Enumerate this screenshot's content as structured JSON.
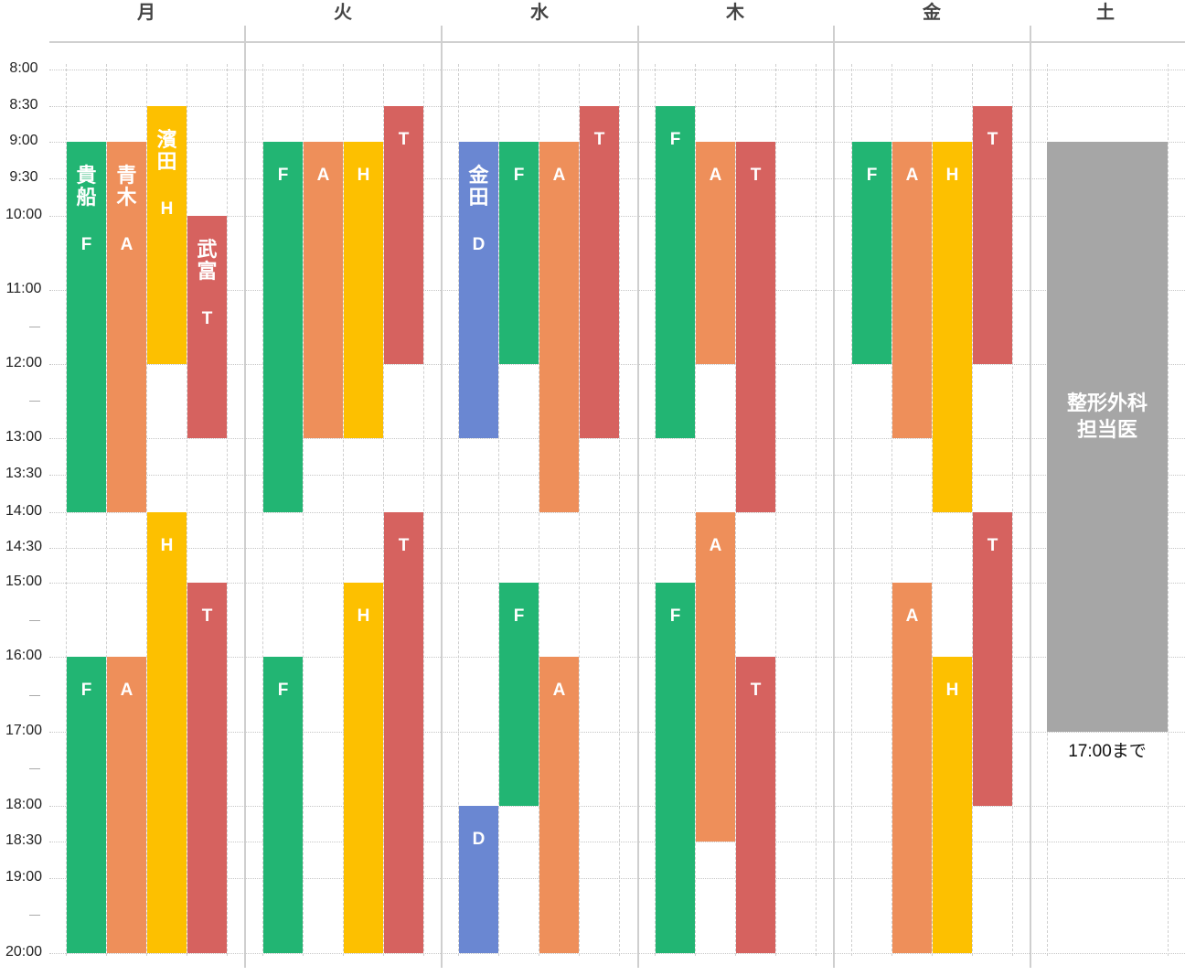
{
  "days": [
    "月",
    "火",
    "水",
    "木",
    "金",
    "土"
  ],
  "time_labels": [
    {
      "t": 8.0,
      "label": "8:00"
    },
    {
      "t": 8.5,
      "label": "8:30"
    },
    {
      "t": 9.0,
      "label": "9:00"
    },
    {
      "t": 9.5,
      "label": "9:30"
    },
    {
      "t": 10.0,
      "label": "10:00"
    },
    {
      "t": 11.0,
      "label": "11:00"
    },
    {
      "t": 11.5,
      "label": "—"
    },
    {
      "t": 12.0,
      "label": "12:00"
    },
    {
      "t": 12.5,
      "label": "—"
    },
    {
      "t": 13.0,
      "label": "13:00"
    },
    {
      "t": 13.5,
      "label": "13:30"
    },
    {
      "t": 14.0,
      "label": "14:00"
    },
    {
      "t": 14.5,
      "label": "14:30"
    },
    {
      "t": 15.0,
      "label": "15:00"
    },
    {
      "t": 15.5,
      "label": "—"
    },
    {
      "t": 16.0,
      "label": "16:00"
    },
    {
      "t": 16.5,
      "label": "—"
    },
    {
      "t": 17.0,
      "label": "17:00"
    },
    {
      "t": 17.5,
      "label": "—"
    },
    {
      "t": 18.0,
      "label": "18:00"
    },
    {
      "t": 18.5,
      "label": "18:30"
    },
    {
      "t": 19.0,
      "label": "19:00"
    },
    {
      "t": 19.5,
      "label": "—"
    },
    {
      "t": 20.0,
      "label": "20:00"
    }
  ],
  "colors": {
    "F": "#22b573",
    "A": "#ee8f5a",
    "H": "#fdc000",
    "T": "#d6625f",
    "D": "#6a87d2",
    "saturday": "#a6a6a6"
  },
  "schedule": [
    {
      "day": 0,
      "sub": 0,
      "doctor": "F",
      "start": 9.0,
      "end": 14.0,
      "name": "貴船",
      "letter": "F"
    },
    {
      "day": 0,
      "sub": 1,
      "doctor": "A",
      "start": 9.0,
      "end": 14.0,
      "name": "青木",
      "letter": "A"
    },
    {
      "day": 0,
      "sub": 2,
      "doctor": "H",
      "start": 8.5,
      "end": 12.0,
      "name": "濱田",
      "letter": "H"
    },
    {
      "day": 0,
      "sub": 3,
      "doctor": "T",
      "start": 10.0,
      "end": 13.0,
      "name": "武富",
      "letter": "T"
    },
    {
      "day": 0,
      "sub": 0,
      "doctor": "F",
      "start": 16.0,
      "end": 20.0,
      "letter": "F"
    },
    {
      "day": 0,
      "sub": 1,
      "doctor": "A",
      "start": 16.0,
      "end": 20.0,
      "letter": "A"
    },
    {
      "day": 0,
      "sub": 2,
      "doctor": "H",
      "start": 14.0,
      "end": 20.0,
      "letter": "H"
    },
    {
      "day": 0,
      "sub": 3,
      "doctor": "T",
      "start": 15.0,
      "end": 20.0,
      "letter": "T"
    },
    {
      "day": 1,
      "sub": 0,
      "doctor": "F",
      "start": 9.0,
      "end": 14.0,
      "letter": "F"
    },
    {
      "day": 1,
      "sub": 1,
      "doctor": "A",
      "start": 9.0,
      "end": 13.0,
      "letter": "A"
    },
    {
      "day": 1,
      "sub": 2,
      "doctor": "H",
      "start": 9.0,
      "end": 13.0,
      "letter": "H"
    },
    {
      "day": 1,
      "sub": 3,
      "doctor": "T",
      "start": 8.5,
      "end": 12.0,
      "letter": "T"
    },
    {
      "day": 1,
      "sub": 0,
      "doctor": "F",
      "start": 16.0,
      "end": 20.0,
      "letter": "F"
    },
    {
      "day": 1,
      "sub": 2,
      "doctor": "H",
      "start": 15.0,
      "end": 20.0,
      "letter": "H"
    },
    {
      "day": 1,
      "sub": 3,
      "doctor": "T",
      "start": 14.0,
      "end": 20.0,
      "letter": "T"
    },
    {
      "day": 2,
      "sub": 0,
      "doctor": "D",
      "start": 9.0,
      "end": 13.0,
      "name": "金田",
      "letter": "D"
    },
    {
      "day": 2,
      "sub": 1,
      "doctor": "F",
      "start": 9.0,
      "end": 12.0,
      "letter": "F"
    },
    {
      "day": 2,
      "sub": 2,
      "doctor": "A",
      "start": 9.0,
      "end": 14.0,
      "letter": "A"
    },
    {
      "day": 2,
      "sub": 3,
      "doctor": "T",
      "start": 8.5,
      "end": 13.0,
      "letter": "T"
    },
    {
      "day": 2,
      "sub": 0,
      "doctor": "D",
      "start": 18.0,
      "end": 20.0,
      "letter": "D"
    },
    {
      "day": 2,
      "sub": 1,
      "doctor": "F",
      "start": 15.0,
      "end": 18.0,
      "letter": "F"
    },
    {
      "day": 2,
      "sub": 2,
      "doctor": "A",
      "start": 16.0,
      "end": 20.0,
      "letter": "A"
    },
    {
      "day": 3,
      "sub": 0,
      "doctor": "F",
      "start": 8.5,
      "end": 13.0,
      "letter": "F"
    },
    {
      "day": 3,
      "sub": 1,
      "doctor": "A",
      "start": 9.0,
      "end": 12.0,
      "letter": "A"
    },
    {
      "day": 3,
      "sub": 2,
      "doctor": "T",
      "start": 9.0,
      "end": 14.0,
      "letter": "T"
    },
    {
      "day": 3,
      "sub": 0,
      "doctor": "F",
      "start": 15.0,
      "end": 20.0,
      "letter": "F"
    },
    {
      "day": 3,
      "sub": 1,
      "doctor": "A",
      "start": 14.0,
      "end": 18.5,
      "letter": "A"
    },
    {
      "day": 3,
      "sub": 2,
      "doctor": "T",
      "start": 16.0,
      "end": 20.0,
      "letter": "T"
    },
    {
      "day": 4,
      "sub": 0,
      "doctor": "F",
      "start": 9.0,
      "end": 12.0,
      "letter": "F"
    },
    {
      "day": 4,
      "sub": 1,
      "doctor": "A",
      "start": 9.0,
      "end": 13.0,
      "letter": "A"
    },
    {
      "day": 4,
      "sub": 2,
      "doctor": "H",
      "start": 9.0,
      "end": 14.0,
      "letter": "H"
    },
    {
      "day": 4,
      "sub": 3,
      "doctor": "T",
      "start": 8.5,
      "end": 12.0,
      "letter": "T"
    },
    {
      "day": 4,
      "sub": 1,
      "doctor": "A",
      "start": 15.0,
      "end": 20.0,
      "letter": "A"
    },
    {
      "day": 4,
      "sub": 2,
      "doctor": "H",
      "start": 16.0,
      "end": 20.0,
      "letter": "H"
    },
    {
      "day": 4,
      "sub": 3,
      "doctor": "T",
      "start": 14.0,
      "end": 18.0,
      "letter": "T"
    }
  ],
  "saturday": {
    "start": 9.0,
    "end": 17.0,
    "lines": [
      "整形外科",
      "担当医"
    ],
    "note": "17:00まで"
  }
}
